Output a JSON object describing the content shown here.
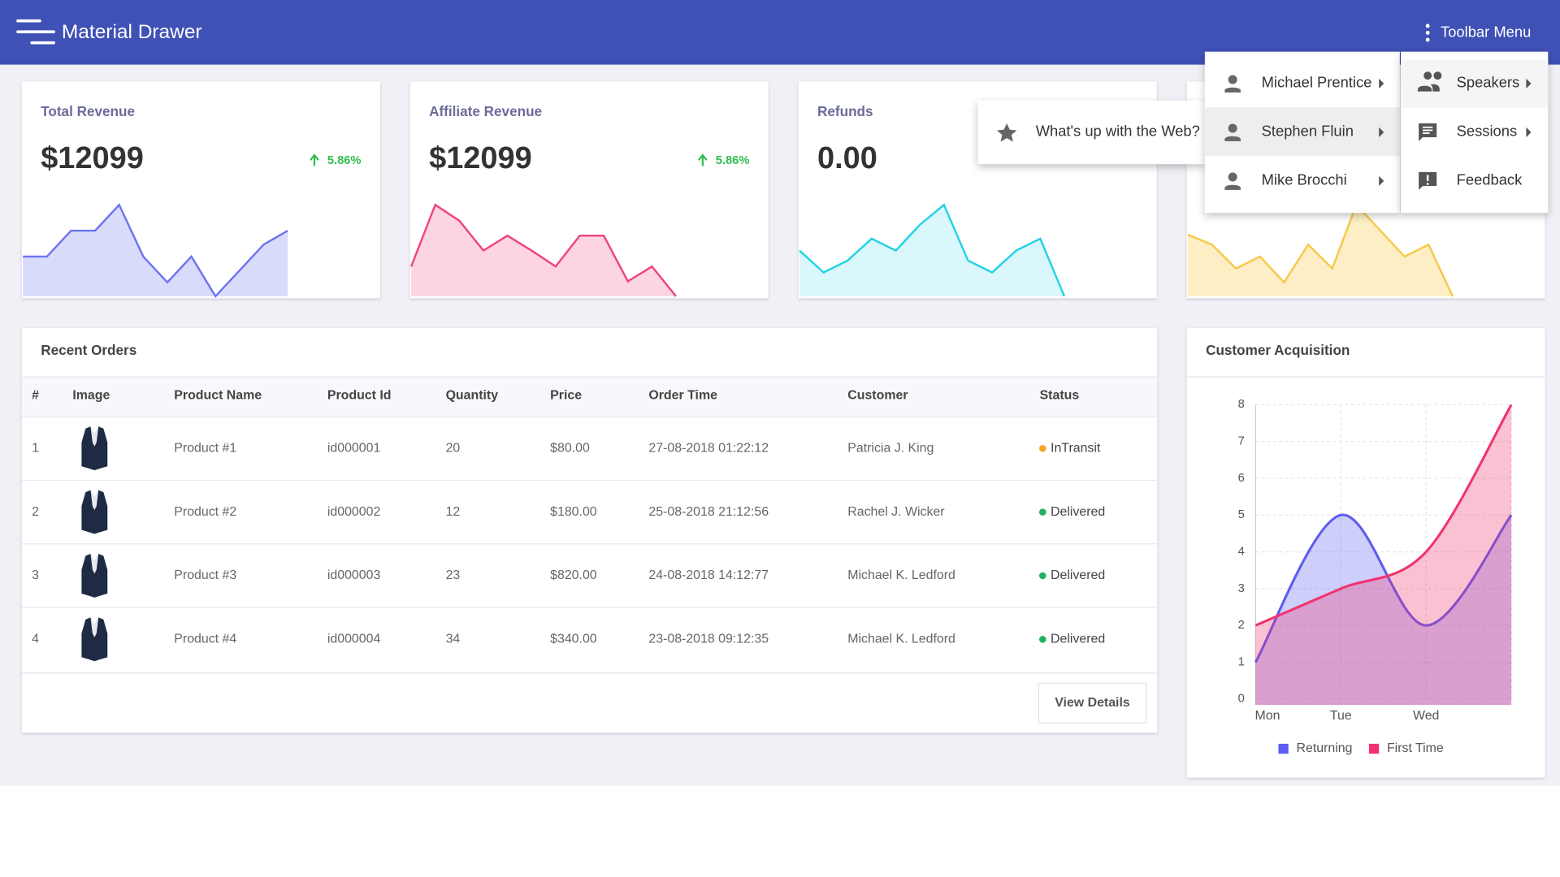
{
  "header": {
    "title": "Material Drawer",
    "menu": "Toolbar Menu"
  },
  "cards": [
    {
      "title": "Total Revenue",
      "value": "$12099",
      "change": "5.86%",
      "color": "#6c74f0",
      "fill": "#d9dbfb",
      "sparkline": [
        40,
        40,
        66,
        66,
        92,
        40,
        14,
        40,
        0,
        26,
        52,
        66
      ]
    },
    {
      "title": "Affiliate Revenue",
      "value": "$12099",
      "change": "5.86%",
      "color": "#f0447c",
      "fill": "#fdd5e2",
      "sparkline": [
        30,
        92,
        76,
        46,
        61,
        46,
        30,
        61,
        61,
        15,
        30,
        0
      ]
    },
    {
      "title": "Refunds",
      "value": "0.00",
      "color": "#22d3e6",
      "fill": "#daf7fb",
      "sparkline": [
        46,
        24,
        36,
        58,
        46,
        72,
        92,
        36,
        24,
        46,
        58,
        0
      ]
    },
    {
      "color": "#f7c948",
      "fill": "#fdeec6",
      "sparkline": [
        62,
        52,
        28,
        40,
        14,
        52,
        28,
        92,
        66,
        40,
        52,
        0
      ]
    }
  ],
  "orders": {
    "title": "Recent Orders",
    "columns": [
      "#",
      "Image",
      "Product Name",
      "Product Id",
      "Quantity",
      "Price",
      "Order Time",
      "Customer",
      "Status"
    ],
    "rows": [
      [
        "1",
        "Product #1",
        "id000001",
        "20",
        "$80.00",
        "27-08-2018 01:22:12",
        "Patricia J. King",
        "InTransit"
      ],
      [
        "2",
        "Product #2",
        "id000002",
        "12",
        "$180.00",
        "25-08-2018 21:12:56",
        "Rachel J. Wicker",
        "Delivered"
      ],
      [
        "3",
        "Product #3",
        "id000003",
        "23",
        "$820.00",
        "24-08-2018 14:12:77",
        "Michael K. Ledford",
        "Delivered"
      ],
      [
        "4",
        "Product #4",
        "id000004",
        "34",
        "$340.00",
        "23-08-2018 09:12:35",
        "Michael K. Ledford",
        "Delivered"
      ]
    ],
    "status_colors": {
      "InTransit": "#f5a623",
      "Delivered": "#1db45a"
    },
    "button": "View Details"
  },
  "menu": {
    "items": [
      "Michael Prentice",
      "Stephen Fluin",
      "Mike Brocchi"
    ],
    "submenu": [
      "Speakers",
      "Sessions",
      "Feedback"
    ],
    "popup": "What's up with the Web?"
  },
  "chart_data": {
    "type": "line",
    "title": "Customer Acquisition",
    "categories": [
      "Mon",
      "Tue",
      "Wed",
      null
    ],
    "series": [
      {
        "name": "Returning",
        "color": "#5c5cf0",
        "values": [
          1,
          5,
          2,
          5
        ]
      },
      {
        "name": "First Time",
        "color": "#f0336e",
        "values": [
          2,
          3,
          4,
          8
        ]
      }
    ],
    "ylim": [
      0,
      8
    ],
    "yticks": [
      0,
      1,
      2,
      3,
      4,
      5,
      6,
      7,
      8
    ],
    "grid": true
  }
}
